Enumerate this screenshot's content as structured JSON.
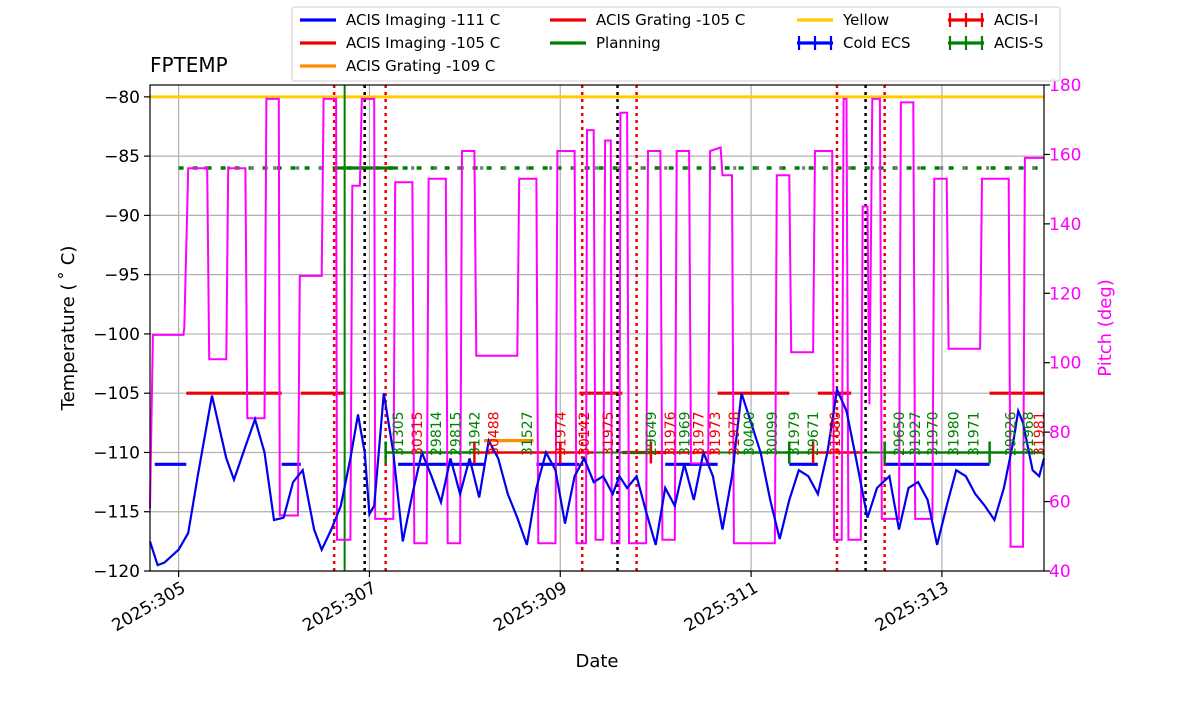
{
  "chart_data": {
    "type": "line",
    "title": "FPTEMP",
    "xlabel": "Date",
    "ylabel": "Temperature ($^\\circ$C)",
    "ylabel_display": "Temperature ( ˚ C)",
    "y2label": "Pitch (deg)",
    "x_ticks": [
      "2025:305",
      "2025:307",
      "2025:309",
      "2025:311",
      "2025:313"
    ],
    "x_tick_days": [
      305,
      307,
      309,
      311,
      313
    ],
    "xlim_days": [
      304.7,
      314.07
    ],
    "ylim": [
      -120,
      -79
    ],
    "y_ticks": [
      -80,
      -85,
      -90,
      -95,
      -100,
      -105,
      -110,
      -115,
      -120
    ],
    "y2lim": [
      40,
      180
    ],
    "y2_ticks": [
      180,
      160,
      140,
      120,
      100,
      80,
      60,
      40
    ],
    "colors": {
      "temp": "#0000ee",
      "pitch": "#ff00ff",
      "imaging111": "#0000ff",
      "imaging105": "#ee0000",
      "grating109": "#ff8c00",
      "grating105": "#ee0000",
      "yellow": "#ffcc00",
      "planning": "#008000",
      "acis_i": "#ee0000",
      "acis_s": "#008000",
      "coldecs": "#0000ff"
    },
    "legend": [
      {
        "label": "ACIS Imaging -111 C",
        "color": "#0000ff",
        "style": "line"
      },
      {
        "label": "ACIS Imaging -105 C",
        "color": "#ee0000",
        "style": "line"
      },
      {
        "label": "ACIS Grating -109 C",
        "color": "#ff8c00",
        "style": "line"
      },
      {
        "label": "ACIS Grating -105 C",
        "color": "#ee0000",
        "style": "line"
      },
      {
        "label": "Planning",
        "color": "#008000",
        "style": "line"
      },
      {
        "label": "Yellow",
        "color": "#ffcc00",
        "style": "line"
      },
      {
        "label": "Cold ECS",
        "color": "#0000ff",
        "style": "marker"
      },
      {
        "label": "ACIS-I",
        "color": "#ee0000",
        "style": "marker"
      },
      {
        "label": "ACIS-S",
        "color": "#008000",
        "style": "marker"
      }
    ],
    "yellow_limit": -80,
    "planning_limit": -86,
    "temperature": [
      [
        304.7,
        -117.5
      ],
      [
        304.78,
        -119.5
      ],
      [
        304.85,
        -119.3
      ],
      [
        305.0,
        -118.2
      ],
      [
        305.1,
        -116.8
      ],
      [
        305.2,
        -112
      ],
      [
        305.35,
        -105.2
      ],
      [
        305.5,
        -110.5
      ],
      [
        305.58,
        -112.3
      ],
      [
        305.7,
        -109.5
      ],
      [
        305.8,
        -107.2
      ],
      [
        305.9,
        -110
      ],
      [
        306.0,
        -115.7
      ],
      [
        306.1,
        -115.5
      ],
      [
        306.2,
        -112.5
      ],
      [
        306.3,
        -111.5
      ],
      [
        306.42,
        -116.5
      ],
      [
        306.5,
        -118.2
      ],
      [
        306.6,
        -116.5
      ],
      [
        306.7,
        -114.5
      ],
      [
        306.8,
        -110.5
      ],
      [
        306.88,
        -106.8
      ],
      [
        306.95,
        -110
      ],
      [
        307.0,
        -115.2
      ],
      [
        307.05,
        -114.5
      ],
      [
        307.15,
        -105
      ],
      [
        307.25,
        -110
      ],
      [
        307.35,
        -117.5
      ],
      [
        307.45,
        -113.5
      ],
      [
        307.55,
        -110
      ],
      [
        307.65,
        -112
      ],
      [
        307.75,
        -114.2
      ],
      [
        307.85,
        -110.5
      ],
      [
        307.95,
        -113.5
      ],
      [
        308.05,
        -110.5
      ],
      [
        308.15,
        -113.8
      ],
      [
        308.25,
        -109
      ],
      [
        308.35,
        -110.5
      ],
      [
        308.45,
        -113.5
      ],
      [
        308.55,
        -115.5
      ],
      [
        308.65,
        -117.8
      ],
      [
        308.75,
        -113
      ],
      [
        308.85,
        -110
      ],
      [
        308.95,
        -111.5
      ],
      [
        309.05,
        -116
      ],
      [
        309.15,
        -112
      ],
      [
        309.25,
        -110.5
      ],
      [
        309.35,
        -112.5
      ],
      [
        309.45,
        -112
      ],
      [
        309.55,
        -113.5
      ],
      [
        309.62,
        -112
      ],
      [
        309.7,
        -113
      ],
      [
        309.8,
        -112
      ],
      [
        309.9,
        -115
      ],
      [
        310.0,
        -117.8
      ],
      [
        310.1,
        -113
      ],
      [
        310.2,
        -114.5
      ],
      [
        310.3,
        -111
      ],
      [
        310.4,
        -114
      ],
      [
        310.5,
        -110
      ],
      [
        310.6,
        -112
      ],
      [
        310.7,
        -116.5
      ],
      [
        310.8,
        -112
      ],
      [
        310.9,
        -105
      ],
      [
        311.0,
        -107.5
      ],
      [
        311.1,
        -110
      ],
      [
        311.2,
        -114
      ],
      [
        311.3,
        -117.3
      ],
      [
        311.4,
        -114
      ],
      [
        311.5,
        -111.5
      ],
      [
        311.6,
        -112
      ],
      [
        311.7,
        -113.5
      ],
      [
        311.8,
        -110
      ],
      [
        311.9,
        -104.7
      ],
      [
        312.0,
        -106.5
      ],
      [
        312.1,
        -110.5
      ],
      [
        312.22,
        -115.5
      ],
      [
        312.32,
        -113
      ],
      [
        312.45,
        -112
      ],
      [
        312.55,
        -116.5
      ],
      [
        312.65,
        -113
      ],
      [
        312.75,
        -112.5
      ],
      [
        312.85,
        -114
      ],
      [
        312.95,
        -117.8
      ],
      [
        313.05,
        -114.5
      ],
      [
        313.15,
        -111.5
      ],
      [
        313.25,
        -112
      ],
      [
        313.35,
        -113.5
      ],
      [
        313.45,
        -114.5
      ],
      [
        313.55,
        -115.7
      ],
      [
        313.65,
        -113
      ],
      [
        313.75,
        -109
      ],
      [
        313.8,
        -106.5
      ],
      [
        313.85,
        -107.5
      ],
      [
        313.95,
        -111.5
      ],
      [
        314.02,
        -112
      ],
      [
        314.07,
        -110.5
      ]
    ],
    "pitch": [
      [
        304.7,
        58
      ],
      [
        304.73,
        108
      ],
      [
        305.05,
        108
      ],
      [
        305.06,
        110
      ],
      [
        305.1,
        156
      ],
      [
        305.3,
        156
      ],
      [
        305.32,
        101
      ],
      [
        305.5,
        101
      ],
      [
        305.52,
        156
      ],
      [
        305.7,
        156
      ],
      [
        305.72,
        84
      ],
      [
        305.9,
        84
      ],
      [
        305.92,
        176
      ],
      [
        306.05,
        176
      ],
      [
        306.06,
        56
      ],
      [
        306.25,
        56
      ],
      [
        306.27,
        125
      ],
      [
        306.5,
        125
      ],
      [
        306.52,
        176
      ],
      [
        306.65,
        176
      ],
      [
        306.66,
        49
      ],
      [
        306.8,
        49
      ],
      [
        306.82,
        151
      ],
      [
        306.9,
        151
      ],
      [
        306.92,
        176
      ],
      [
        307.05,
        176
      ],
      [
        307.06,
        55
      ],
      [
        307.25,
        55
      ],
      [
        307.27,
        152
      ],
      [
        307.45,
        152
      ],
      [
        307.47,
        48
      ],
      [
        307.6,
        48
      ],
      [
        307.62,
        153
      ],
      [
        307.8,
        153
      ],
      [
        307.82,
        48
      ],
      [
        307.95,
        48
      ],
      [
        307.97,
        161
      ],
      [
        308.1,
        161
      ],
      [
        308.12,
        102
      ],
      [
        308.55,
        102
      ],
      [
        308.57,
        153
      ],
      [
        308.75,
        153
      ],
      [
        308.77,
        48
      ],
      [
        308.95,
        48
      ],
      [
        308.97,
        161
      ],
      [
        309.15,
        161
      ],
      [
        309.17,
        48
      ],
      [
        309.27,
        48
      ],
      [
        309.28,
        167
      ],
      [
        309.35,
        167
      ],
      [
        309.37,
        49
      ],
      [
        309.45,
        49
      ],
      [
        309.47,
        164
      ],
      [
        309.53,
        164
      ],
      [
        309.54,
        48
      ],
      [
        309.62,
        48
      ],
      [
        309.63,
        172
      ],
      [
        309.7,
        172
      ],
      [
        309.72,
        48
      ],
      [
        309.9,
        48
      ],
      [
        309.92,
        161
      ],
      [
        310.05,
        161
      ],
      [
        310.07,
        49
      ],
      [
        310.2,
        49
      ],
      [
        310.22,
        161
      ],
      [
        310.35,
        161
      ],
      [
        310.37,
        71
      ],
      [
        310.55,
        71
      ],
      [
        310.57,
        161
      ],
      [
        310.68,
        162
      ],
      [
        310.7,
        154
      ],
      [
        310.8,
        154
      ],
      [
        310.82,
        48
      ],
      [
        311.25,
        48
      ],
      [
        311.27,
        154
      ],
      [
        311.4,
        154
      ],
      [
        311.42,
        103
      ],
      [
        311.65,
        103
      ],
      [
        311.67,
        161
      ],
      [
        311.85,
        161
      ],
      [
        311.87,
        49
      ],
      [
        311.95,
        49
      ],
      [
        311.97,
        176
      ],
      [
        312.0,
        176
      ],
      [
        312.02,
        49
      ],
      [
        312.15,
        49
      ],
      [
        312.17,
        145
      ],
      [
        312.22,
        145
      ],
      [
        312.24,
        88
      ],
      [
        312.27,
        176
      ],
      [
        312.35,
        176
      ],
      [
        312.37,
        55
      ],
      [
        312.55,
        55
      ],
      [
        312.57,
        175
      ],
      [
        312.7,
        175
      ],
      [
        312.72,
        55
      ],
      [
        312.9,
        55
      ],
      [
        312.92,
        153
      ],
      [
        313.05,
        153
      ],
      [
        313.07,
        104
      ],
      [
        313.4,
        104
      ],
      [
        313.42,
        153
      ],
      [
        313.7,
        153
      ],
      [
        313.72,
        47
      ],
      [
        313.85,
        47
      ],
      [
        313.87,
        159
      ],
      [
        314.0,
        159
      ],
      [
        314.07,
        159
      ]
    ],
    "imaging111_segments": [
      [
        304.75,
        305.08
      ],
      [
        306.08,
        306.28
      ],
      [
        307.3,
        308.2
      ],
      [
        308.75,
        309.2
      ],
      [
        310.1,
        310.65
      ],
      [
        311.4,
        311.7
      ],
      [
        312.4,
        313.5
      ]
    ],
    "imaging105_segments": [
      [
        305.08,
        306.08
      ],
      [
        306.28,
        306.75
      ],
      [
        309.2,
        309.65
      ],
      [
        310.65,
        311.4
      ],
      [
        311.7,
        312.05
      ],
      [
        313.5,
        314.07
      ]
    ],
    "grating109_segments": [
      [
        308.2,
        308.72
      ]
    ],
    "grating105_segments": [
      [
        309.65,
        310.1
      ]
    ],
    "planning_segments": [
      [
        306.63,
        307.3
      ]
    ],
    "red_dotted_lines": [
      306.63,
      307.17,
      309.23,
      309.8,
      311.9,
      312.4
    ],
    "black_dotted_lines": [
      306.95,
      309.6,
      312.2
    ],
    "green_vline": 306.74,
    "obsids": [
      {
        "day": 307.3,
        "label": "31305",
        "color": "#008000"
      },
      {
        "day": 307.5,
        "label": "30315",
        "color": "#ee0000"
      },
      {
        "day": 307.7,
        "label": "29814",
        "color": "#008000"
      },
      {
        "day": 307.9,
        "label": "29815",
        "color": "#008000"
      },
      {
        "day": 308.1,
        "label": "31942",
        "color": "#008000"
      },
      {
        "day": 308.3,
        "label": "30488",
        "color": "#ee0000"
      },
      {
        "day": 308.65,
        "label": "31527",
        "color": "#008000"
      },
      {
        "day": 309.0,
        "label": "31974",
        "color": "#ee0000"
      },
      {
        "day": 309.25,
        "label": "30142",
        "color": "#ee0000"
      },
      {
        "day": 309.5,
        "label": "31975",
        "color": "#ee0000"
      },
      {
        "day": 309.95,
        "label": "29649",
        "color": "#008000"
      },
      {
        "day": 310.15,
        "label": "31976",
        "color": "#ee0000"
      },
      {
        "day": 310.3,
        "label": "31969",
        "color": "#008000"
      },
      {
        "day": 310.45,
        "label": "31977",
        "color": "#ee0000"
      },
      {
        "day": 310.62,
        "label": "31973",
        "color": "#ee0000"
      },
      {
        "day": 310.82,
        "label": "31978",
        "color": "#ee0000"
      },
      {
        "day": 310.98,
        "label": "30400",
        "color": "#008000"
      },
      {
        "day": 311.22,
        "label": "30099",
        "color": "#008000"
      },
      {
        "day": 311.45,
        "label": "31979",
        "color": "#008000"
      },
      {
        "day": 311.65,
        "label": "29671",
        "color": "#008000"
      },
      {
        "day": 311.88,
        "label": "31680",
        "color": "#ee0000"
      },
      {
        "day": 312.55,
        "label": "29650",
        "color": "#008000"
      },
      {
        "day": 312.72,
        "label": "31927",
        "color": "#008000"
      },
      {
        "day": 312.9,
        "label": "31970",
        "color": "#008000"
      },
      {
        "day": 313.12,
        "label": "31980",
        "color": "#008000"
      },
      {
        "day": 313.33,
        "label": "31971",
        "color": "#008000"
      },
      {
        "day": 313.72,
        "label": "29926",
        "color": "#008000"
      },
      {
        "day": 313.9,
        "label": "31968",
        "color": "#008000"
      },
      {
        "day": 314.02,
        "label": "31981",
        "color": "#ee0000"
      }
    ],
    "acis_markers": [
      {
        "from": 307.17,
        "to": 308.1,
        "color": "#008000"
      },
      {
        "from": 308.1,
        "to": 309.0,
        "color": "#ee0000"
      },
      {
        "from": 309.0,
        "to": 309.35,
        "color": "#ee0000"
      },
      {
        "from": 309.95,
        "to": 310.65,
        "color": "#ee0000"
      },
      {
        "from": 310.82,
        "to": 311.4,
        "color": "#008000"
      },
      {
        "from": 311.4,
        "to": 311.65,
        "color": "#008000"
      },
      {
        "from": 311.65,
        "to": 312.15,
        "color": "#ee0000"
      },
      {
        "from": 312.4,
        "to": 313.5,
        "color": "#008000"
      },
      {
        "from": 313.5,
        "to": 314.07,
        "color": "#008000"
      }
    ]
  }
}
